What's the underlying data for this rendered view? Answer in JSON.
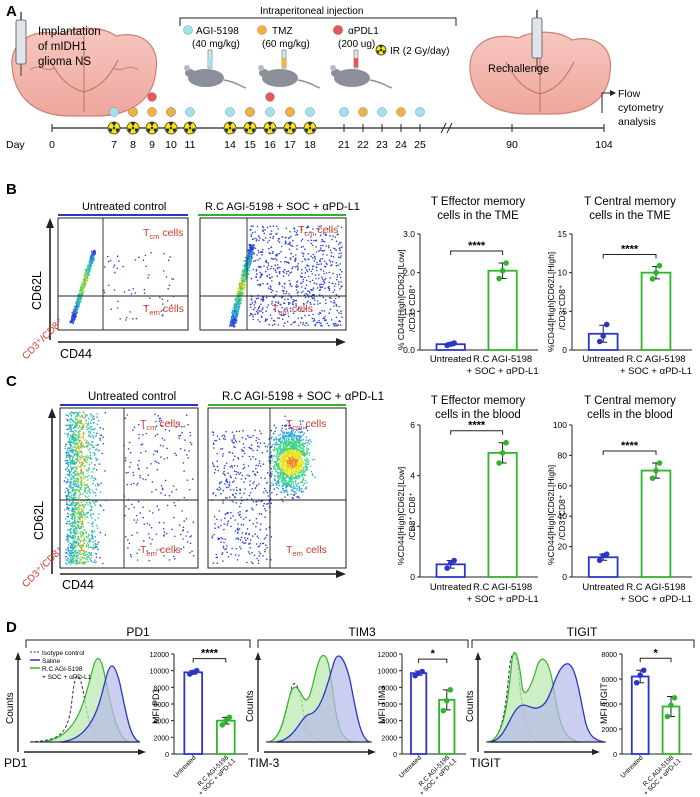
{
  "panelA": {
    "label": "A",
    "implant_text": [
      "Implantation",
      "of mIDH1",
      "glioma NS"
    ],
    "injection_title": "Intraperitoneal injection",
    "drugs": [
      {
        "name": "AGI-5198",
        "dose": "(40 mg/kg)",
        "color": "#9fe3ee"
      },
      {
        "name": "TMZ",
        "dose": "(60 mg/kg)",
        "color": "#f4b13c"
      },
      {
        "name": "αPDL1",
        "dose": "(200 ug)",
        "color": "#e8585a"
      }
    ],
    "ir_label": "IR (2 Gy/day)",
    "rechallenge": "Rechallenge",
    "flow_text": [
      "Flow",
      "cytometry",
      "analysis"
    ],
    "day_label": "Day",
    "days": [
      "0",
      "7",
      "8",
      "9",
      "10",
      "11",
      "14",
      "15",
      "16",
      "17",
      "18",
      "21",
      "22",
      "23",
      "24",
      "25",
      "90",
      "104"
    ]
  },
  "panelB": {
    "label": "B",
    "plot1_title": "Untreated control",
    "plot2_title": "R.C AGI-5198 + SOC + αPD-L1",
    "tcm_label": "T",
    "tcm_sub": "cm",
    "tem_label": "T",
    "tem_sub": "em",
    "cells": "cells",
    "y_axis": "CD62L",
    "gate_axis": "CD3⁺/CD8⁺",
    "x_axis": "CD44",
    "chart1_title": [
      "T Effector memory",
      "cells in the TME"
    ],
    "chart2_title": [
      "T Central memory",
      "cells in the TME"
    ],
    "chart1_ylabel": [
      "% CD44[High]CD62L[Low]",
      "/CD3⁺ CD8⁺"
    ],
    "chart2_ylabel": [
      "%CD44[High]CD62L[High]",
      "/CD3⁺CD8⁺"
    ]
  },
  "panelC": {
    "label": "C",
    "plot1_title": "Untreated control",
    "plot2_title": "R.C AGI-5198 + SOC + αPD-L1",
    "y_axis": "CD62L",
    "gate_axis": "CD3⁺/CD8⁺",
    "x_axis": "CD44",
    "chart1_title": [
      "T Effector memory",
      "cells in the blood"
    ],
    "chart2_title": [
      "T Central memory",
      "cells in the blood"
    ],
    "chart1_ylabel": [
      "%CD44[High]CD62L[Low]",
      "/CD3⁺ CD8⁺"
    ],
    "chart2_ylabel": [
      "%CD44[High]CD62L[High]",
      "/CD3⁺CD8⁺"
    ]
  },
  "panelD": {
    "label": "D",
    "hist_titles": [
      "PD1",
      "TIM3",
      "TIGIT"
    ],
    "hist_xlabels": [
      "PD1",
      "TIM-3",
      "TIGIT"
    ],
    "counts": "Counts",
    "legend": [
      "Isotype control",
      "Saline",
      "R.C AGI-5198",
      "+ SOC + αPD-L1"
    ]
  },
  "common": {
    "cat_untreated": "Untreated",
    "cat_treated": [
      "R.C AGI-5198",
      "+ SOC + αPD-L1"
    ],
    "colors": {
      "untreated": "#2b36c9",
      "treated": "#2fb52b",
      "dashed": "#333333"
    }
  },
  "chart_data": [
    {
      "id": "B1",
      "type": "bar",
      "title": "T Effector memory cells in the TME",
      "ylabel": "% CD44[High]CD62L[Low] /CD3+ CD8+",
      "categories": [
        "Untreated",
        "R.C AGI-5198 + SOC + αPD-L1"
      ],
      "values": [
        0.15,
        2.05
      ],
      "points": [
        [
          0.12,
          0.15,
          0.18
        ],
        [
          1.85,
          2.05,
          2.25
        ]
      ],
      "errors": [
        0.04,
        0.2
      ],
      "ylim": [
        0,
        3
      ],
      "yticks": [
        "0.0",
        "1.0",
        "2.0",
        "3.0"
      ],
      "ytick_values": [
        0,
        1,
        2,
        3
      ],
      "significance": "****"
    },
    {
      "id": "B2",
      "type": "bar",
      "title": "T Central memory cells in the TME",
      "ylabel": "%CD44[High]CD62L[High] /CD3+CD8+",
      "categories": [
        "Untreated",
        "R.C AGI-5198 + SOC + αPD-L1"
      ],
      "values": [
        2.1,
        10.0
      ],
      "points": [
        [
          1.1,
          1.8,
          3.3
        ],
        [
          9.2,
          10.0,
          10.9
        ]
      ],
      "errors": [
        1.1,
        0.8
      ],
      "ylim": [
        0,
        15
      ],
      "yticks": [
        "0",
        "5",
        "10",
        "15"
      ],
      "ytick_values": [
        0,
        5,
        10,
        15
      ],
      "significance": "****"
    },
    {
      "id": "C1",
      "type": "bar",
      "title": "T Effector memory cells in the blood",
      "ylabel": "%CD44[High]CD62L[Low] /CD3+ CD8+",
      "categories": [
        "Untreated",
        "R.C AGI-5198 + SOC + αPD-L1"
      ],
      "values": [
        0.5,
        4.9
      ],
      "points": [
        [
          0.35,
          0.55,
          0.65
        ],
        [
          4.5,
          4.9,
          5.3
        ]
      ],
      "errors": [
        0.15,
        0.4
      ],
      "ylim": [
        0,
        6
      ],
      "yticks": [
        "0",
        "2",
        "4",
        "6"
      ],
      "ytick_values": [
        0,
        2,
        4,
        6
      ],
      "significance": "****"
    },
    {
      "id": "C2",
      "type": "bar",
      "title": "T Central memory cells in the blood",
      "ylabel": "%CD44[High]CD62L[High] /CD3+CD8+",
      "categories": [
        "Untreated",
        "R.C AGI-5198 + SOC + αPD-L1"
      ],
      "values": [
        13,
        70
      ],
      "points": [
        [
          11,
          14,
          15
        ],
        [
          65,
          70,
          75
        ]
      ],
      "errors": [
        2,
        5
      ],
      "ylim": [
        0,
        100
      ],
      "yticks": [
        "0",
        "20",
        "40",
        "60",
        "80",
        "100"
      ],
      "ytick_values": [
        0,
        20,
        40,
        60,
        80,
        100
      ],
      "significance": "****"
    },
    {
      "id": "D1",
      "type": "bar",
      "title": "",
      "ylabel": "MFI PD1",
      "categories": [
        "Untreated",
        "R.C AGI-5198 + SOC + αPD-L1"
      ],
      "values": [
        9800,
        4000
      ],
      "points": [
        [
          9600,
          9800,
          10000
        ],
        [
          3500,
          4000,
          4400
        ]
      ],
      "errors": [
        200,
        400
      ],
      "ylim": [
        0,
        12000
      ],
      "yticks": [
        "0",
        "2000",
        "4000",
        "6000",
        "8000",
        "10000",
        "12000"
      ],
      "ytick_values": [
        0,
        2000,
        4000,
        6000,
        8000,
        10000,
        12000
      ],
      "significance": "****"
    },
    {
      "id": "D2",
      "type": "bar",
      "title": "",
      "ylabel": "MFI TIM3",
      "categories": [
        "Untreated",
        "R.C AGI-5198 + SOC + αPD-L1"
      ],
      "values": [
        9700,
        6500
      ],
      "points": [
        [
          9400,
          9700,
          9900
        ],
        [
          5200,
          6400,
          7700
        ]
      ],
      "errors": [
        250,
        1200
      ],
      "ylim": [
        0,
        12000
      ],
      "yticks": [
        "0",
        "2000",
        "4000",
        "6000",
        "8000",
        "10000",
        "12000"
      ],
      "ytick_values": [
        0,
        2000,
        4000,
        6000,
        8000,
        10000,
        12000
      ],
      "significance": "*"
    },
    {
      "id": "D3",
      "type": "bar",
      "title": "",
      "ylabel": "MFI TIGIT",
      "categories": [
        "Untreated",
        "R.C AGI-5198 + SOC + αPD-L1"
      ],
      "values": [
        6200,
        3800
      ],
      "points": [
        [
          5700,
          6300,
          6700
        ],
        [
          3000,
          3900,
          4500
        ]
      ],
      "errors": [
        500,
        800
      ],
      "ylim": [
        0,
        8000
      ],
      "yticks": [
        "0",
        "2000",
        "4000",
        "6000",
        "8000"
      ],
      "ytick_values": [
        0,
        2000,
        4000,
        6000,
        8000
      ],
      "significance": "*"
    }
  ]
}
